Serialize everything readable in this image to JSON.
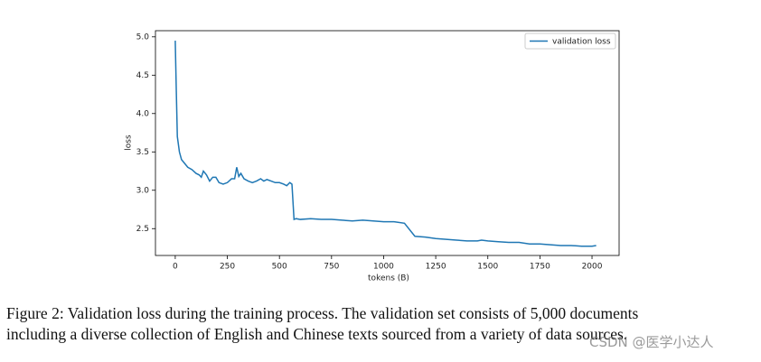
{
  "chart_data": {
    "type": "line",
    "xlabel": "tokens (B)",
    "ylabel": "loss",
    "xlim": [
      -95,
      2130
    ],
    "ylim": [
      2.15,
      5.08
    ],
    "xticks": [
      0,
      250,
      500,
      750,
      1000,
      1250,
      1500,
      1750,
      2000
    ],
    "yticks": [
      2.5,
      {
        "value": 3,
        "label": "3.0"
      },
      3.5,
      {
        "value": 4,
        "label": "4.0"
      },
      4.5,
      {
        "value": 5,
        "label": "5.0"
      }
    ],
    "grid": false,
    "legend": "upper right",
    "x": [
      0,
      5,
      10,
      20,
      30,
      45,
      60,
      80,
      100,
      115,
      125,
      135,
      150,
      165,
      180,
      195,
      210,
      230,
      250,
      270,
      285,
      295,
      305,
      315,
      330,
      350,
      370,
      390,
      410,
      425,
      440,
      460,
      480,
      500,
      520,
      535,
      550,
      560,
      570,
      580,
      600,
      650,
      700,
      750,
      800,
      850,
      900,
      950,
      1000,
      1050,
      1100,
      1150,
      1200,
      1250,
      1300,
      1350,
      1400,
      1450,
      1470,
      1500,
      1550,
      1600,
      1650,
      1700,
      1750,
      1800,
      1850,
      1900,
      1950,
      2000,
      2020
    ],
    "series": [
      {
        "name": "validation loss",
        "color": "#1f77b4",
        "values": [
          4.95,
          4.3,
          3.7,
          3.5,
          3.4,
          3.35,
          3.3,
          3.27,
          3.22,
          3.2,
          3.17,
          3.25,
          3.2,
          3.12,
          3.17,
          3.17,
          3.1,
          3.08,
          3.1,
          3.15,
          3.15,
          3.3,
          3.18,
          3.22,
          3.15,
          3.12,
          3.1,
          3.12,
          3.15,
          3.12,
          3.14,
          3.12,
          3.1,
          3.1,
          3.08,
          3.06,
          3.1,
          3.08,
          2.62,
          2.63,
          2.62,
          2.63,
          2.62,
          2.62,
          2.61,
          2.6,
          2.61,
          2.6,
          2.59,
          2.59,
          2.57,
          2.4,
          2.39,
          2.37,
          2.36,
          2.35,
          2.34,
          2.34,
          2.35,
          2.34,
          2.33,
          2.32,
          2.32,
          2.3,
          2.3,
          2.29,
          2.28,
          2.28,
          2.27,
          2.27,
          2.28
        ]
      }
    ]
  },
  "caption": [
    "Figure 2: Validation loss during the training process. The validation set consists of 5,000 documents",
    "including a diverse collection of English and Chinese texts sourced from a variety of data sources."
  ],
  "watermark": "CSDN @医学小达人"
}
